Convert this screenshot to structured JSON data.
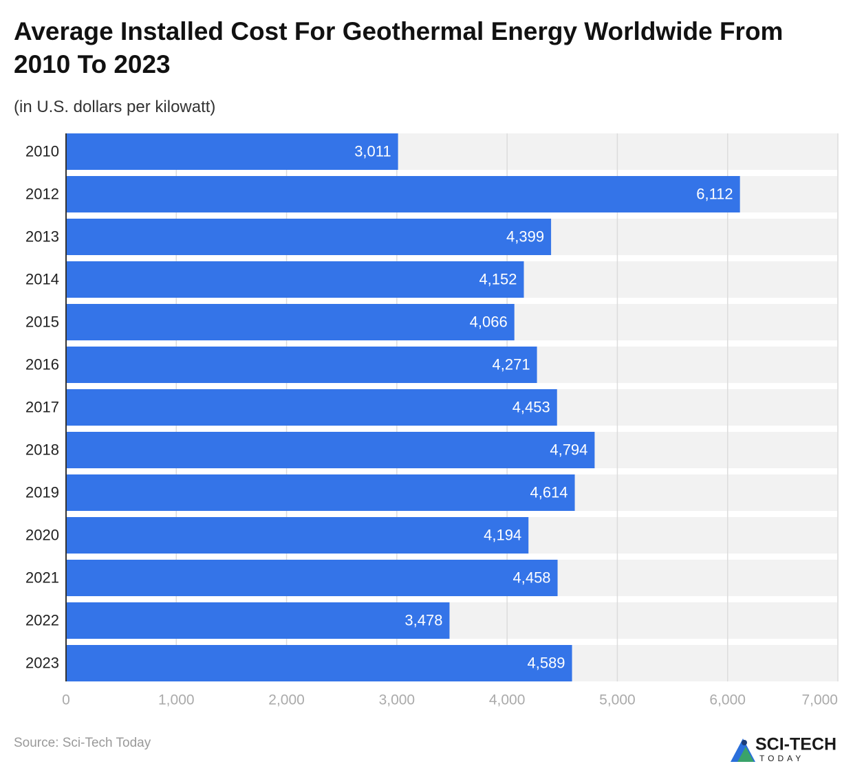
{
  "chart_data": {
    "type": "barh",
    "title": "Average Installed Cost For Geothermal Energy Worldwide From 2010 To 2023",
    "subtitle": "(in U.S. dollars per kilowatt)",
    "categories": [
      "2010",
      "2012",
      "2013",
      "2014",
      "2015",
      "2016",
      "2017",
      "2018",
      "2019",
      "2020",
      "2021",
      "2022",
      "2023"
    ],
    "values": [
      3011,
      6112,
      4399,
      4152,
      4066,
      4271,
      4453,
      4794,
      4614,
      4194,
      4458,
      3478,
      4589
    ],
    "value_labels": [
      "3,011",
      "6,112",
      "4,399",
      "4,152",
      "4,066",
      "4,271",
      "4,453",
      "4,794",
      "4,614",
      "4,194",
      "4,458",
      "3,478",
      "4,589"
    ],
    "color": "#3474e8",
    "xlim": [
      0,
      7000
    ],
    "xticks": [
      0,
      {
        "value": 1000,
        "label": "1,000"
      },
      {
        "value": 2000,
        "label": "2,000"
      },
      {
        "value": 3000,
        "label": "3,000"
      },
      {
        "value": 4000,
        "label": "4,000"
      },
      {
        "value": 5000,
        "label": "5,000"
      },
      {
        "value": 6000,
        "label": "6,000"
      },
      {
        "value": 7000,
        "label": "7,000"
      }
    ],
    "grid": true,
    "source": "Source: Sci-Tech Today",
    "logo": {
      "name": "SCI-TECH",
      "tagline": "TODAY"
    }
  }
}
